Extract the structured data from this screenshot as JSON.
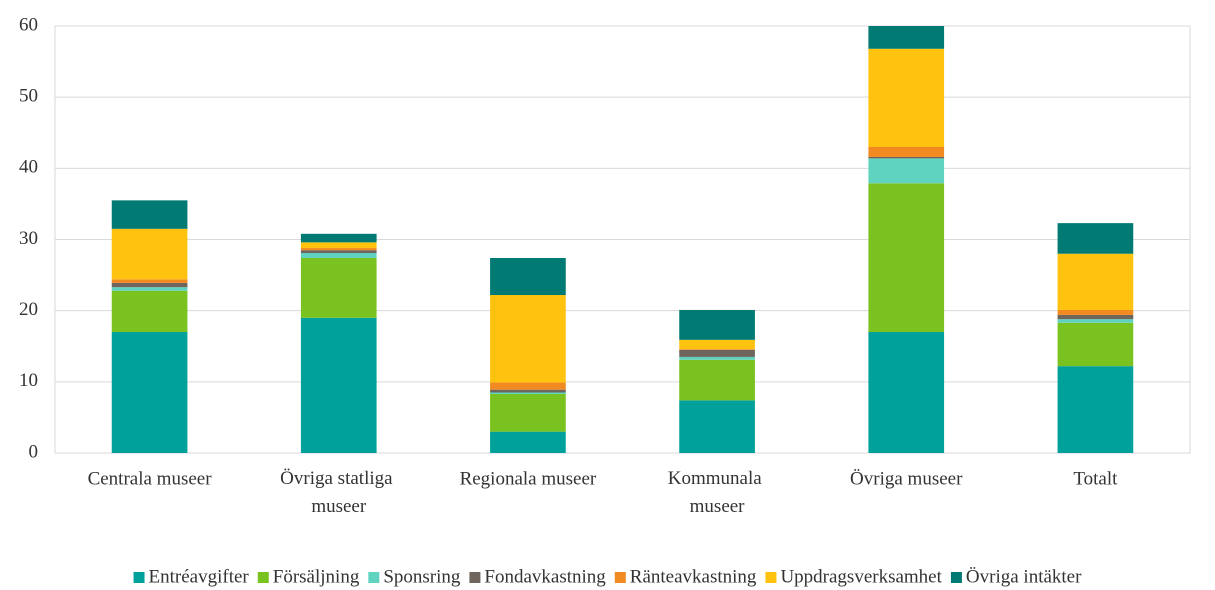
{
  "chart_data": {
    "type": "stacked_bar",
    "categories": [
      "Centrala museer",
      "Övriga statliga museer",
      "Regionala museer",
      "Kommunala museer",
      "Övriga museer",
      "Totalt"
    ],
    "series": [
      {
        "name": "Entréavgifter",
        "color": "#00a19a",
        "values": [
          17.0,
          19.0,
          3.0,
          7.4,
          17.0,
          12.2
        ]
      },
      {
        "name": "Försäljning",
        "color": "#7ac21f",
        "values": [
          5.8,
          8.4,
          5.3,
          5.7,
          20.9,
          6.1
        ]
      },
      {
        "name": "Sponsring",
        "color": "#5fd3c0",
        "values": [
          0.5,
          0.7,
          0.2,
          0.4,
          3.5,
          0.5
        ]
      },
      {
        "name": "Fondavkastning",
        "color": "#6e665c",
        "values": [
          0.6,
          0.4,
          0.4,
          1.0,
          0.2,
          0.6
        ]
      },
      {
        "name": "Ränteavkastning",
        "color": "#f28a22",
        "values": [
          0.5,
          0.3,
          1.0,
          0.1,
          1.4,
          0.7
        ]
      },
      {
        "name": "Uppdragsverksamhet",
        "color": "#ffc20e",
        "values": [
          7.1,
          0.8,
          12.3,
          1.3,
          13.8,
          7.9
        ]
      },
      {
        "name": "Övriga intäkter",
        "color": "#007a73",
        "values": [
          4.0,
          1.2,
          5.2,
          4.2,
          3.2,
          4.3
        ]
      }
    ],
    "ylim": [
      0,
      60
    ],
    "yticks": [
      0,
      10,
      20,
      30,
      40,
      50,
      60
    ],
    "grid": true,
    "legend": "bottom"
  }
}
